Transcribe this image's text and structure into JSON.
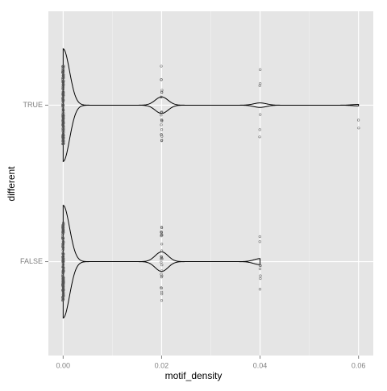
{
  "chart_data": {
    "type": "violin",
    "x_label": "motif_density",
    "y_label": "different",
    "categories": [
      "TRUE",
      "FALSE"
    ],
    "groups": [
      {
        "points": [
          {
            "x": 0,
            "count": 150
          },
          {
            "x": 0.02,
            "count": 22
          },
          {
            "x": 0.04,
            "count": 6
          },
          {
            "x": 0.06,
            "count": 2
          }
        ]
      },
      {
        "points": [
          {
            "x": 0,
            "count": 150
          },
          {
            "x": 0.02,
            "count": 26
          },
          {
            "x": 0.04,
            "count": 8
          }
        ]
      }
    ],
    "xlim": [
      -0.003,
      0.063
    ],
    "xticks": [
      {
        "value": 0,
        "label": "0.00"
      },
      {
        "value": 0.02,
        "label": "0.02"
      },
      {
        "value": 0.04,
        "label": "0.04"
      },
      {
        "value": 0.06,
        "label": "0.06"
      }
    ],
    "x_minor_ticks": [
      0.01,
      0.03,
      0.05
    ],
    "bandwidth": 0.0013,
    "grid": true,
    "panel_color": "#e5e5e5",
    "point_color": "#555555",
    "line_color": "#000000"
  }
}
